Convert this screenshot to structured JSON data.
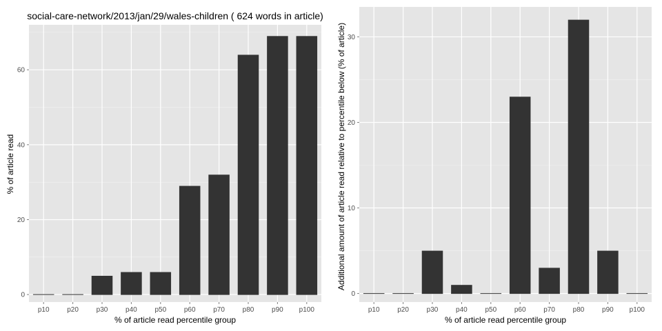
{
  "chart_data": [
    {
      "type": "bar",
      "title": "social-care-network/2013/jan/29/wales-children ( 624 words in article)",
      "xlabel": "% of article read percentile group",
      "ylabel": "% of article read",
      "categories": [
        "p10",
        "p20",
        "p30",
        "p40",
        "p50",
        "p60",
        "p70",
        "p80",
        "p90",
        "p100"
      ],
      "values": [
        0,
        0,
        5,
        6,
        6,
        29,
        32,
        64,
        69,
        69
      ],
      "ylim": [
        -2,
        72
      ],
      "yticks": [
        0,
        20,
        40,
        60
      ],
      "bar_color": "#333333",
      "panel_background": "#e5e5e5",
      "grid": true,
      "legend": "none"
    },
    {
      "type": "bar",
      "title": "",
      "xlabel": "% of article read percentile group",
      "ylabel": "Additional amount of article read relative to percentile below (% of article)",
      "categories": [
        "p10",
        "p20",
        "p30",
        "p40",
        "p50",
        "p60",
        "p70",
        "p80",
        "p90",
        "p100"
      ],
      "values": [
        0,
        0,
        5,
        1,
        0,
        23,
        3,
        32,
        5,
        0
      ],
      "ylim": [
        -1,
        33.5
      ],
      "yticks": [
        0,
        10,
        20,
        30
      ],
      "bar_color": "#333333",
      "panel_background": "#e5e5e5",
      "grid": true,
      "legend": "none"
    }
  ]
}
